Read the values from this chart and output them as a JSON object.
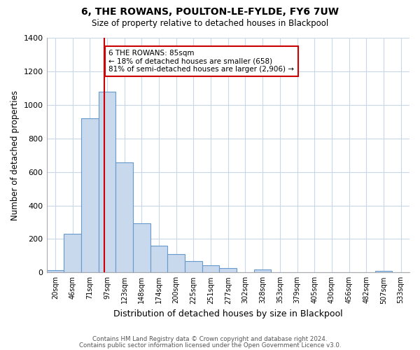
{
  "title": "6, THE ROWANS, POULTON-LE-FYLDE, FY6 7UW",
  "subtitle": "Size of property relative to detached houses in Blackpool",
  "xlabel": "Distribution of detached houses by size in Blackpool",
  "ylabel": "Number of detached properties",
  "bar_labels": [
    "20sqm",
    "46sqm",
    "71sqm",
    "97sqm",
    "123sqm",
    "148sqm",
    "174sqm",
    "200sqm",
    "225sqm",
    "251sqm",
    "277sqm",
    "302sqm",
    "328sqm",
    "353sqm",
    "379sqm",
    "405sqm",
    "430sqm",
    "456sqm",
    "482sqm",
    "507sqm",
    "533sqm"
  ],
  "bar_values": [
    15,
    230,
    920,
    1080,
    655,
    295,
    160,
    110,
    70,
    42,
    25,
    0,
    20,
    0,
    0,
    0,
    0,
    0,
    0,
    10,
    0
  ],
  "bar_color": "#c8d8ed",
  "bar_edge_color": "#6699cc",
  "vline_x": 2.85,
  "vline_color": "#cc0000",
  "annotation_text": "6 THE ROWANS: 85sqm\n← 18% of detached houses are smaller (658)\n81% of semi-detached houses are larger (2,906) →",
  "annotation_box_color": "#ffffff",
  "annotation_box_edge_color": "#cc0000",
  "ylim": [
    0,
    1400
  ],
  "yticks": [
    0,
    200,
    400,
    600,
    800,
    1000,
    1200,
    1400
  ],
  "footer_line1": "Contains HM Land Registry data © Crown copyright and database right 2024.",
  "footer_line2": "Contains public sector information licensed under the Open Government Licence v3.0.",
  "background_color": "#ffffff",
  "grid_color": "#c8d8ea"
}
